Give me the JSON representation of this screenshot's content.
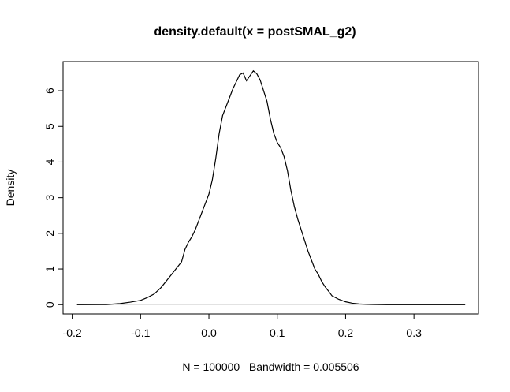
{
  "chart_data": {
    "type": "line",
    "title": "density.default(x = postSMAL_g2)",
    "xlabel": "N = 100000   Bandwidth = 0.005506",
    "ylabel": "Density",
    "xlim": [
      -0.2134,
      0.3944
    ],
    "ylim": [
      -0.26,
      6.82
    ],
    "xticks": [
      -0.2,
      -0.1,
      0.0,
      0.1,
      0.2,
      0.3
    ],
    "xtick_labels": [
      "-0.2",
      "-0.1",
      "0.0",
      "0.1",
      "0.2",
      "0.3"
    ],
    "yticks": [
      0,
      1,
      2,
      3,
      4,
      5,
      6
    ],
    "ytick_labels": [
      "0",
      "1",
      "2",
      "3",
      "4",
      "5",
      "6"
    ],
    "grid": false,
    "series": [
      {
        "x": [
          -0.193,
          -0.15,
          -0.13,
          -0.115,
          -0.1,
          -0.09,
          -0.08,
          -0.07,
          -0.06,
          -0.05,
          -0.04,
          -0.035,
          -0.03,
          -0.025,
          -0.02,
          -0.015,
          -0.01,
          -0.005,
          0.0,
          0.005,
          0.01,
          0.015,
          0.02,
          0.025,
          0.03,
          0.035,
          0.04,
          0.045,
          0.05,
          0.055,
          0.06,
          0.065,
          0.07,
          0.075,
          0.08,
          0.085,
          0.09,
          0.095,
          0.1,
          0.105,
          0.11,
          0.115,
          0.12,
          0.125,
          0.13,
          0.135,
          0.14,
          0.145,
          0.15,
          0.155,
          0.16,
          0.165,
          0.17,
          0.175,
          0.18,
          0.19,
          0.2,
          0.21,
          0.22,
          0.23,
          0.24,
          0.25,
          0.26,
          0.27,
          0.28,
          0.3,
          0.33,
          0.375
        ],
        "y": [
          0.0,
          0.003,
          0.03,
          0.07,
          0.12,
          0.2,
          0.3,
          0.48,
          0.72,
          0.96,
          1.2,
          1.55,
          1.75,
          1.9,
          2.1,
          2.35,
          2.6,
          2.85,
          3.1,
          3.5,
          4.1,
          4.8,
          5.3,
          5.55,
          5.8,
          6.05,
          6.25,
          6.45,
          6.5,
          6.28,
          6.42,
          6.56,
          6.48,
          6.3,
          6.0,
          5.7,
          5.2,
          4.8,
          4.55,
          4.4,
          4.15,
          3.75,
          3.2,
          2.75,
          2.4,
          2.1,
          1.8,
          1.5,
          1.25,
          1.0,
          0.85,
          0.65,
          0.5,
          0.38,
          0.25,
          0.15,
          0.08,
          0.04,
          0.02,
          0.01,
          0.004,
          0.001,
          0.0,
          0.0,
          0.0,
          0.0,
          0.0,
          0.0
        ]
      }
    ]
  }
}
